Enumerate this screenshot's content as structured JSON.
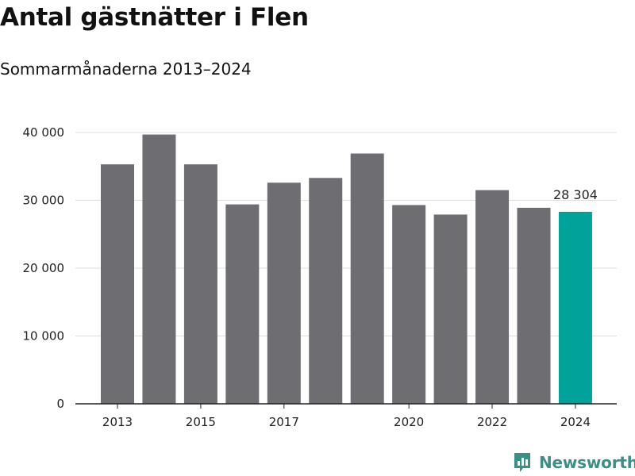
{
  "header": {
    "title": "Antal gästnätter i Flen",
    "subtitle": "Sommarmånaderna 2013–2024"
  },
  "brand": {
    "name": "Newsworthy"
  },
  "colors": {
    "bar": "#6e6d72",
    "highlight": "#00a39a",
    "grid": "#dddddd",
    "axis": "#222222",
    "brand": "#3a8f86"
  },
  "chart_data": {
    "type": "bar",
    "categories": [
      "2013",
      "2014",
      "2015",
      "2016",
      "2017",
      "2018",
      "2019",
      "2020",
      "2021",
      "2022",
      "2023",
      "2024"
    ],
    "values": [
      35300,
      39700,
      35300,
      29400,
      32600,
      33300,
      36900,
      29300,
      27900,
      31500,
      28900,
      28304
    ],
    "highlight_index": 11,
    "data_labels": [
      {
        "index": 11,
        "text": "28 304"
      }
    ],
    "x_tick_labels": [
      {
        "index": 0,
        "text": "2013"
      },
      {
        "index": 2,
        "text": "2015"
      },
      {
        "index": 4,
        "text": "2017"
      },
      {
        "index": 7,
        "text": "2020"
      },
      {
        "index": 9,
        "text": "2022"
      },
      {
        "index": 11,
        "text": "2024"
      }
    ],
    "y_ticks": [
      {
        "value": 0,
        "label": "0"
      },
      {
        "value": 10000,
        "label": "10 000"
      },
      {
        "value": 20000,
        "label": "20 000"
      },
      {
        "value": 30000,
        "label": "30 000"
      },
      {
        "value": 40000,
        "label": "40 000"
      }
    ],
    "ylim": [
      0,
      40000
    ],
    "grid": true,
    "legend": "none"
  }
}
